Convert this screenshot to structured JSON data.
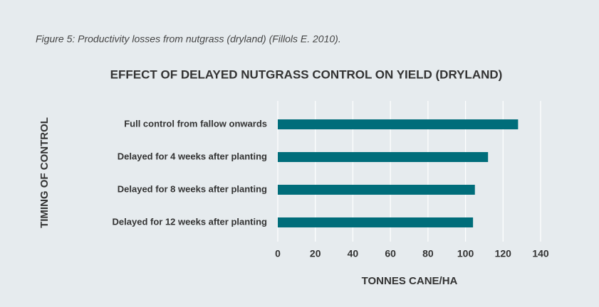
{
  "chart_data": {
    "type": "bar",
    "caption": "Figure 5: Productivity losses from nutgrass (dryland) (Fillols E. 2010).",
    "title": "EFFECT OF DELAYED NUTGRASS CONTROL ON YIELD (DRYLAND)",
    "y_label": "TIMING OF CONTROL",
    "x_label": "TONNES CANE/HA",
    "categories": [
      "Full control from fallow onwards",
      "Delayed for 4 weeks after planting",
      "Delayed for 8 weeks after planting",
      "Delayed for 12 weeks after planting"
    ],
    "values": [
      128,
      112,
      105,
      104
    ],
    "color": "#006d7a",
    "xlim": [
      0,
      140
    ],
    "xticks": [
      0,
      20,
      40,
      60,
      80,
      100,
      120,
      140
    ],
    "grid": true
  }
}
